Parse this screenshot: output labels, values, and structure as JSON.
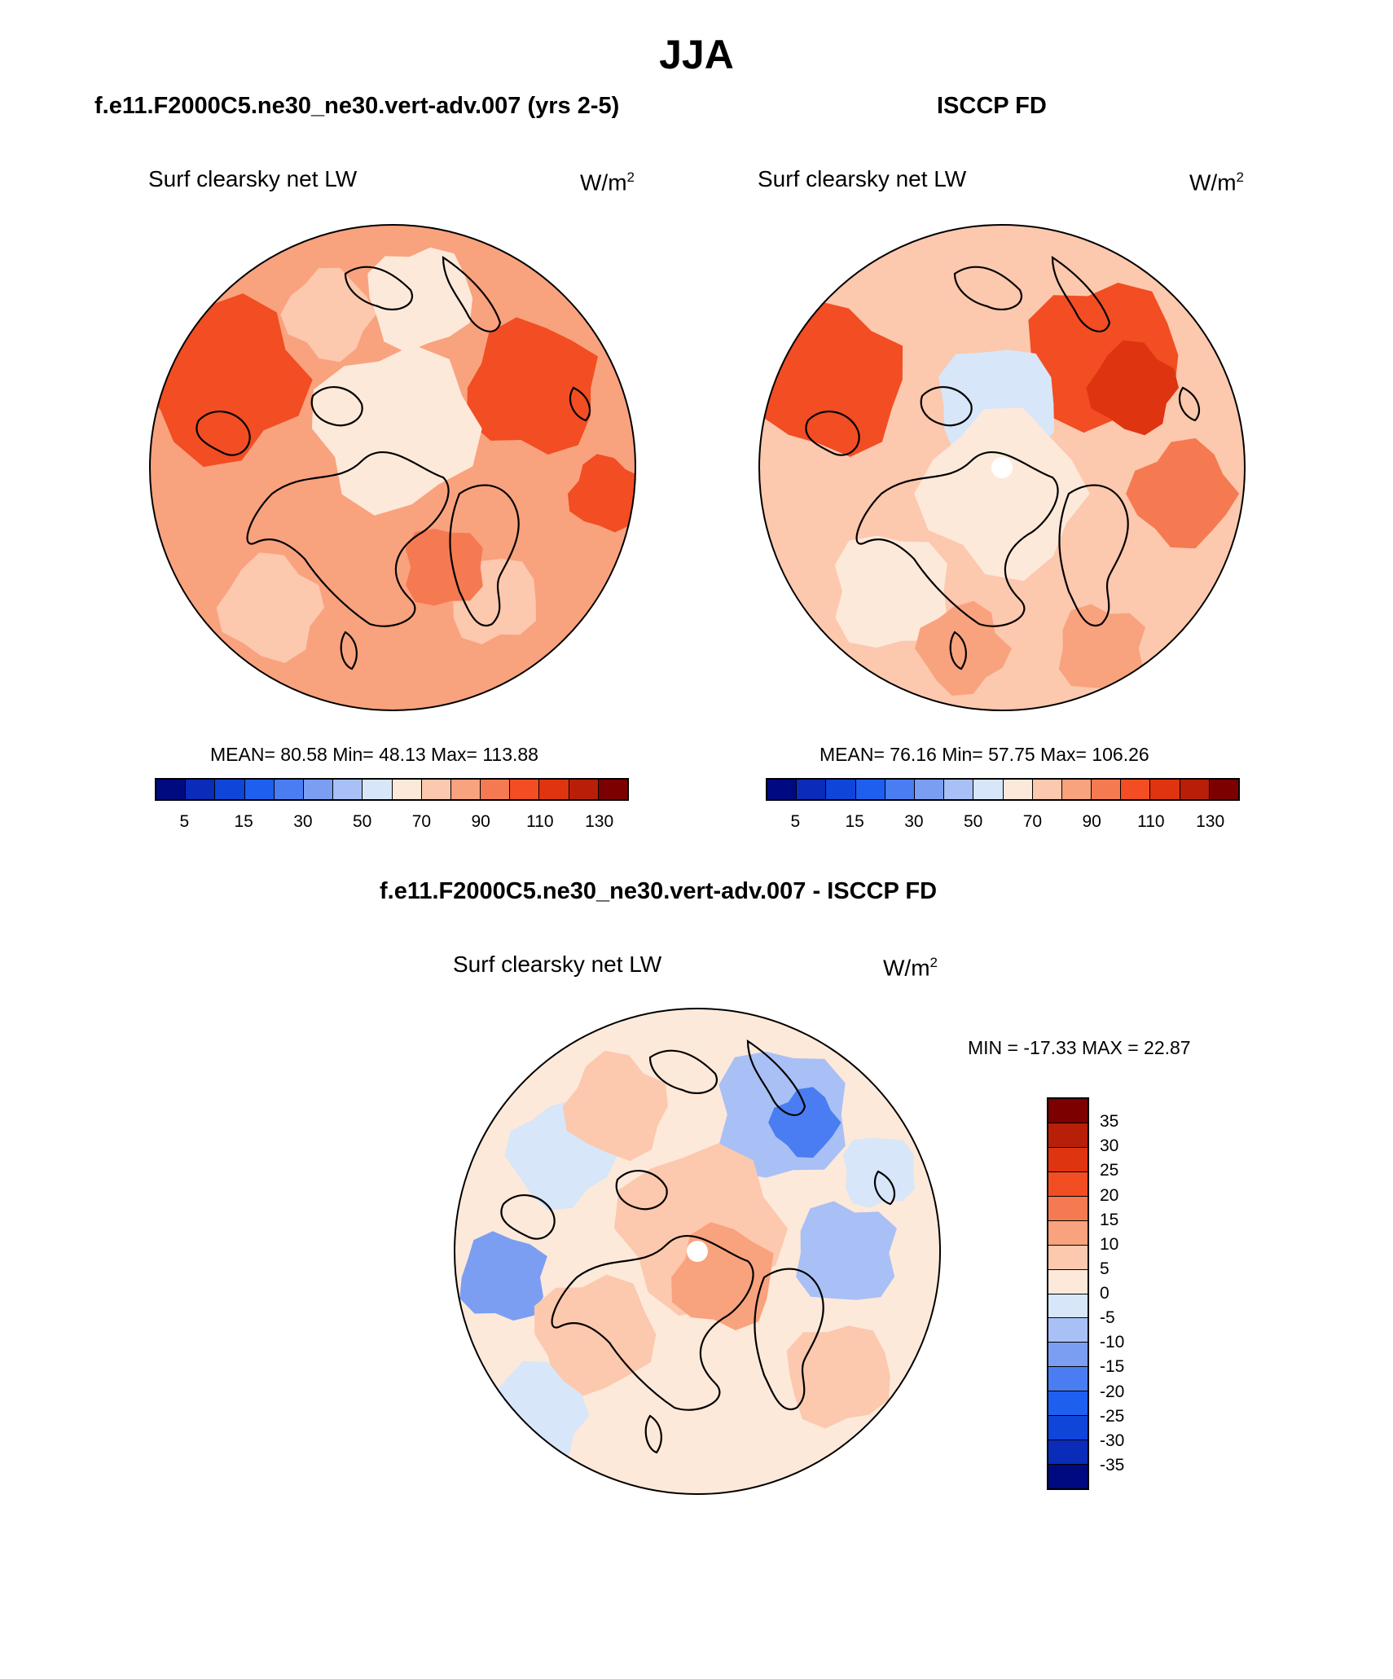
{
  "title": "JJA",
  "panels": [
    {
      "id": "model",
      "title": "f.e11.F2000C5.ne30_ne30.vert-adv.007 (yrs 2-5)",
      "variable": "Surf clearsky net LW",
      "units_base": "W/m",
      "units_exp": "2",
      "stats_text": "MEAN=  80.58  Min=  48.13  Max= 113.88",
      "mean": 80.58,
      "min": 48.13,
      "max": 113.88,
      "polar_hole": false
    },
    {
      "id": "obs",
      "title": "ISCCP FD",
      "variable": "Surf clearsky net LW",
      "units_base": "W/m",
      "units_exp": "2",
      "stats_text": "MEAN=  76.16  Min=  57.75  Max= 106.26",
      "mean": 76.16,
      "min": 57.75,
      "max": 106.26,
      "polar_hole": true
    },
    {
      "id": "diff",
      "title": "f.e11.F2000C5.ne30_ne30.vert-adv.007 - ISCCP FD",
      "variable": "Surf clearsky net LW",
      "units_base": "W/m",
      "units_exp": "2",
      "stats_text": "MIN = -17.33 MAX =  22.87",
      "min": -17.33,
      "max": 22.87,
      "polar_hole": true
    }
  ],
  "colorbar_abs": {
    "colors": [
      "#000a80",
      "#0a2cb8",
      "#0f45d8",
      "#1f5fef",
      "#4a7df2",
      "#7b9ef2",
      "#a8c0f5",
      "#d7e6f8",
      "#fde9da",
      "#fcc8ae",
      "#f9a27e",
      "#f57a51",
      "#f24d23",
      "#df3410",
      "#b81f08",
      "#7d0000"
    ],
    "tick_labels": [
      "5",
      "15",
      "30",
      "50",
      "70",
      "90",
      "110",
      "130"
    ],
    "tick_slots": [
      1,
      3,
      5,
      7,
      9,
      11,
      13,
      15
    ]
  },
  "colorbar_diff": {
    "colors_top_to_bottom": [
      "#7d0000",
      "#b81f08",
      "#df3410",
      "#f24d23",
      "#f57a51",
      "#f9a27e",
      "#fcc8ae",
      "#fde9da",
      "#d7e6f8",
      "#a8c0f5",
      "#7b9ef2",
      "#4a7df2",
      "#1f5fef",
      "#0f45d8",
      "#0a2cb8",
      "#000a80"
    ],
    "tick_labels": [
      "35",
      "30",
      "25",
      "20",
      "15",
      "10",
      "5",
      "0",
      "-5",
      "-10",
      "-15",
      "-20",
      "-25",
      "-30",
      "-35"
    ]
  }
}
